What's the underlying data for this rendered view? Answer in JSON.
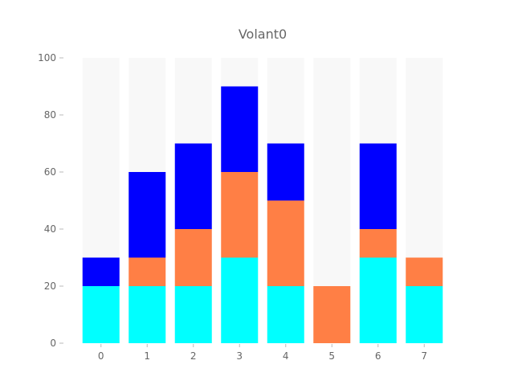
{
  "chart_data": {
    "type": "bar",
    "stacked": true,
    "title": "Volant0",
    "categories": [
      "0",
      "1",
      "2",
      "3",
      "4",
      "5",
      "6",
      "7"
    ],
    "series": [
      {
        "color": "#00ffff",
        "values": [
          20,
          20,
          20,
          30,
          20,
          0,
          30,
          20
        ]
      },
      {
        "color": "#ff7f45",
        "values": [
          0,
          10,
          20,
          30,
          30,
          20,
          10,
          10
        ]
      },
      {
        "color": "#0000ff",
        "values": [
          10,
          30,
          30,
          30,
          20,
          0,
          30,
          0
        ]
      }
    ],
    "ylim": [
      0,
      100
    ],
    "yticks": [
      "0",
      "20",
      "40",
      "60",
      "80",
      "100"
    ],
    "grid": false,
    "background_band_color": "#f8f8f8"
  }
}
